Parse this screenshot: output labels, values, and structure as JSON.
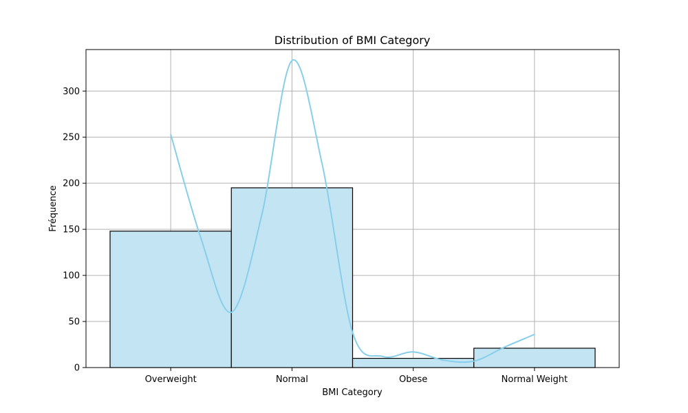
{
  "chart_data": {
    "type": "bar",
    "title": "Distribution of BMI Category",
    "xlabel": "BMI Category",
    "ylabel": "Fréquence",
    "categories": [
      "Overweight",
      "Normal",
      "Obese",
      "Normal Weight"
    ],
    "values": [
      148,
      195,
      10,
      21
    ],
    "ylim": [
      0,
      345
    ],
    "yticks": [
      0,
      50,
      100,
      150,
      200,
      250,
      300
    ],
    "grid": true,
    "kde": {
      "x": [
        0,
        0.25,
        0.5,
        0.75,
        1,
        1.25,
        1.5,
        1.75,
        2,
        2.25,
        2.5,
        2.75,
        3
      ],
      "y": [
        253,
        140,
        60,
        165,
        333,
        220,
        38,
        12,
        17,
        8,
        7,
        22,
        36
      ]
    },
    "colors": {
      "bar_fill": "#c2e4f3",
      "bar_edge": "#000000",
      "kde_line": "#87ceeb"
    }
  }
}
